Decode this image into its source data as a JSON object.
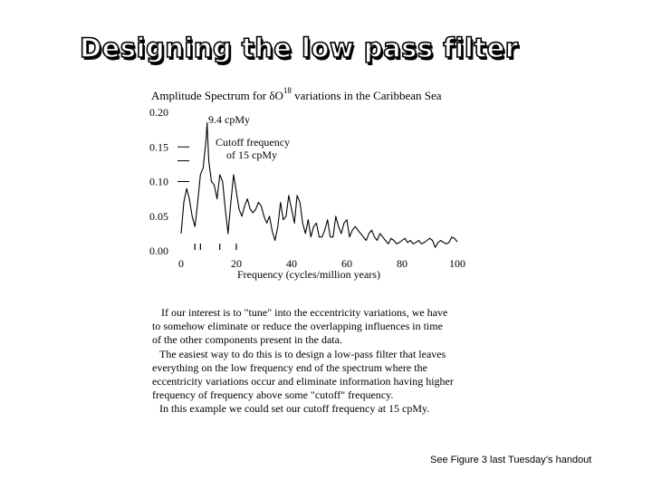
{
  "slide": {
    "title": "Designing the low pass filter",
    "footnote": "See Figure 3 last Tuesday’s handout"
  },
  "body_lines": [
    "If our interest is to \"tune\" into the eccentricity variations, we have",
    "to somehow eliminate or reduce the overlapping influences in time",
    "of the other components present in the data.",
    "The easiest way to do this is to design a low-pass filter that leaves",
    "everything on the low frequency end of the spectrum where the",
    "eccentricity variations occur and eliminate information having higher",
    "frequency of frequency above some \"cutoff\" frequency.",
    "In this example we could set our cutoff frequency at 15 cpMy."
  ],
  "chart_data": {
    "type": "line",
    "title_prefix": "Amplitude Spectrum for δO",
    "title_sup": "18",
    "title_suffix": " variations in the Caribbean Sea",
    "xlabel": "Frequency (cycles/million years)",
    "ylabel": "",
    "xlim": [
      0,
      100
    ],
    "ylim": [
      0,
      0.2
    ],
    "x_ticks": [
      "0",
      "20",
      "40",
      "60",
      "80",
      "100"
    ],
    "y_ticks": [
      "0.20",
      "0.15",
      "0.10",
      "0.05",
      "0.00"
    ],
    "annotations": {
      "peak": "9.4 cpMy",
      "cutoff_line1": "Cutoff frequency",
      "cutoff_line2": "of 15 cpMy"
    },
    "line_color": "#000000",
    "series": [
      {
        "x": [
          0,
          1,
          2,
          3,
          4,
          5,
          6,
          7,
          8,
          9,
          9.4,
          10,
          11,
          12,
          13,
          14,
          15,
          16,
          17,
          18,
          19,
          20,
          21,
          22,
          23,
          24,
          25,
          26,
          27,
          28,
          29,
          30,
          31,
          32,
          33,
          34,
          35,
          36,
          37,
          38,
          39,
          40,
          41,
          42,
          43,
          44,
          45,
          46,
          47,
          48,
          49,
          50,
          51,
          52,
          53,
          54,
          55,
          56,
          57,
          58,
          59,
          60,
          61,
          62,
          63,
          64,
          65,
          66,
          67,
          68,
          69,
          70,
          71,
          72,
          73,
          74,
          75,
          76,
          77,
          78,
          79,
          80,
          81,
          82,
          83,
          84,
          85,
          86,
          87,
          88,
          89,
          90,
          91,
          92,
          93,
          94,
          95,
          96,
          97,
          98,
          99,
          100
        ],
        "y": [
          0.025,
          0.07,
          0.09,
          0.075,
          0.05,
          0.035,
          0.07,
          0.11,
          0.12,
          0.16,
          0.185,
          0.13,
          0.1,
          0.095,
          0.075,
          0.11,
          0.1,
          0.06,
          0.025,
          0.07,
          0.11,
          0.085,
          0.06,
          0.05,
          0.065,
          0.075,
          0.06,
          0.055,
          0.06,
          0.07,
          0.065,
          0.05,
          0.04,
          0.05,
          0.028,
          0.015,
          0.035,
          0.07,
          0.045,
          0.05,
          0.08,
          0.06,
          0.04,
          0.08,
          0.07,
          0.04,
          0.025,
          0.045,
          0.02,
          0.035,
          0.04,
          0.02,
          0.02,
          0.03,
          0.045,
          0.02,
          0.02,
          0.05,
          0.035,
          0.025,
          0.04,
          0.045,
          0.02,
          0.03,
          0.035,
          0.03,
          0.025,
          0.02,
          0.015,
          0.025,
          0.03,
          0.02,
          0.015,
          0.025,
          0.02,
          0.015,
          0.01,
          0.018,
          0.015,
          0.01,
          0.012,
          0.015,
          0.018,
          0.012,
          0.015,
          0.01,
          0.012,
          0.015,
          0.01,
          0.012,
          0.015,
          0.018,
          0.015,
          0.005,
          0.012,
          0.015,
          0.012,
          0.01,
          0.012,
          0.02,
          0.018,
          0.013
        ]
      }
    ],
    "tick_marks_x": [
      5,
      7,
      14,
      20
    ],
    "legend_dash_ys": [
      0.15,
      0.13,
      0.1
    ]
  }
}
